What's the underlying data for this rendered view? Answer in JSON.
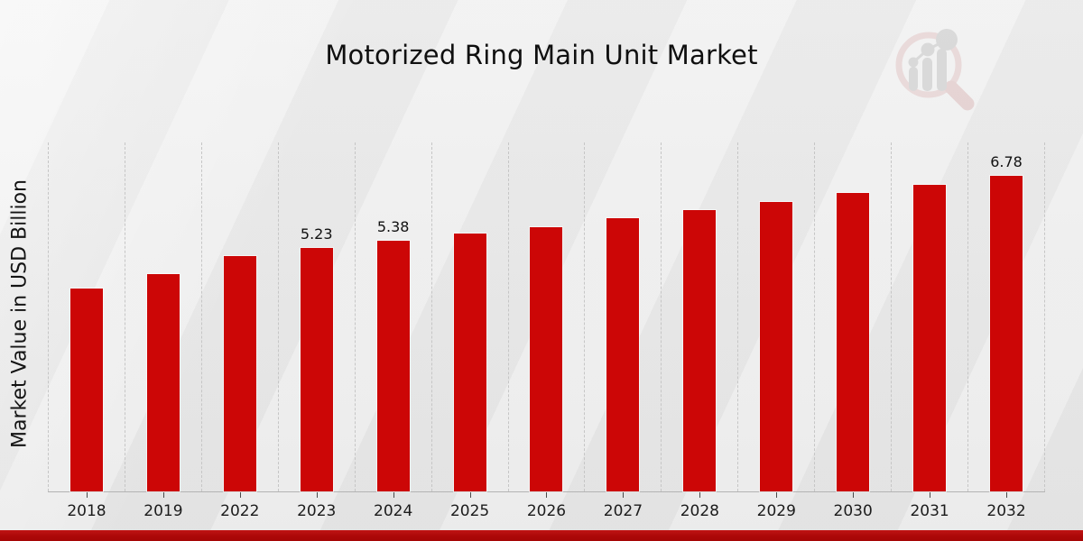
{
  "title": "Motorized Ring Main Unit Market",
  "y_axis_label": "Market Value in USD Billion",
  "colors": {
    "bar": "#cc0606",
    "footer_strip": "#b00b0b",
    "background": "#ececec",
    "gridline": "#c6c6c6"
  },
  "watermark_icon": "magnifier-bar-chart-logo",
  "chart_data": {
    "type": "bar",
    "title": "Motorized Ring Main Unit Market",
    "xlabel": "",
    "ylabel": "Market Value in USD Billion",
    "ylim": [
      0,
      7.49
    ],
    "grid": "vertical dashed band separators, no horizontal gridlines, no y tick labels",
    "legend": "none",
    "bar_color": "#cc0606",
    "categories": [
      "2018",
      "2019",
      "2022",
      "2023",
      "2024",
      "2025",
      "2026",
      "2027",
      "2028",
      "2029",
      "2030",
      "2031",
      "2032"
    ],
    "values": [
      4.35,
      4.67,
      5.06,
      5.23,
      5.38,
      5.53,
      5.68,
      5.87,
      6.04,
      6.22,
      6.4,
      6.59,
      6.78
    ],
    "data_labels": {
      "2023": "5.23",
      "2024": "5.38",
      "2032": "6.78"
    }
  }
}
